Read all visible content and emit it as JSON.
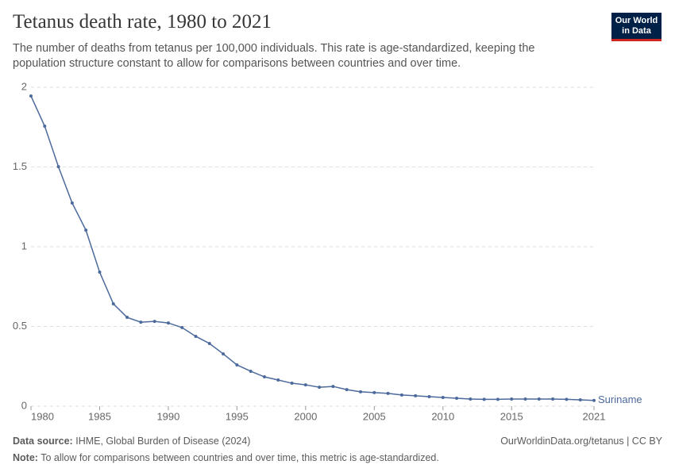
{
  "chart_data": {
    "type": "line",
    "title": "Tetanus death rate, 1980 to 2021",
    "subtitle": "The number of deaths from tetanus per 100,000 individuals. This rate is age-standardized, keeping the population structure constant to allow for comparisons between countries and over time.",
    "logo": [
      "Our World",
      "in Data"
    ],
    "source_label": "Data source:",
    "source": "IHME, Global Burden of Disease (2024)",
    "url": "OurWorldinData.org/tetanus | CC BY",
    "note_label": "Note:",
    "note": "To allow for comparisons between countries and over time, this metric is age-standardized.",
    "x": [
      1980,
      1981,
      1982,
      1983,
      1984,
      1985,
      1986,
      1987,
      1988,
      1989,
      1990,
      1991,
      1992,
      1993,
      1994,
      1995,
      1996,
      1997,
      1998,
      1999,
      2000,
      2001,
      2002,
      2003,
      2004,
      2005,
      2006,
      2007,
      2008,
      2009,
      2010,
      2011,
      2012,
      2013,
      2014,
      2015,
      2016,
      2017,
      2018,
      2019,
      2020,
      2021
    ],
    "series": [
      {
        "name": "Suriname",
        "color": "#4c6a9c",
        "values": [
          1.945,
          1.756,
          1.502,
          1.274,
          1.104,
          0.841,
          0.642,
          0.557,
          0.527,
          0.532,
          0.522,
          0.493,
          0.438,
          0.393,
          0.328,
          0.259,
          0.219,
          0.184,
          0.164,
          0.144,
          0.134,
          0.119,
          0.124,
          0.104,
          0.09,
          0.085,
          0.08,
          0.07,
          0.065,
          0.06,
          0.055,
          0.05,
          0.045,
          0.043,
          0.043,
          0.045,
          0.045,
          0.045,
          0.045,
          0.043,
          0.04,
          0.036
        ]
      }
    ],
    "xlim": [
      1980,
      2021
    ],
    "xticks": [
      1980,
      1985,
      1990,
      1995,
      2000,
      2005,
      2010,
      2015,
      2021
    ],
    "ylim": [
      0,
      2
    ],
    "yticks": [
      0,
      0.5,
      1,
      1.5,
      2
    ],
    "grid": true
  }
}
